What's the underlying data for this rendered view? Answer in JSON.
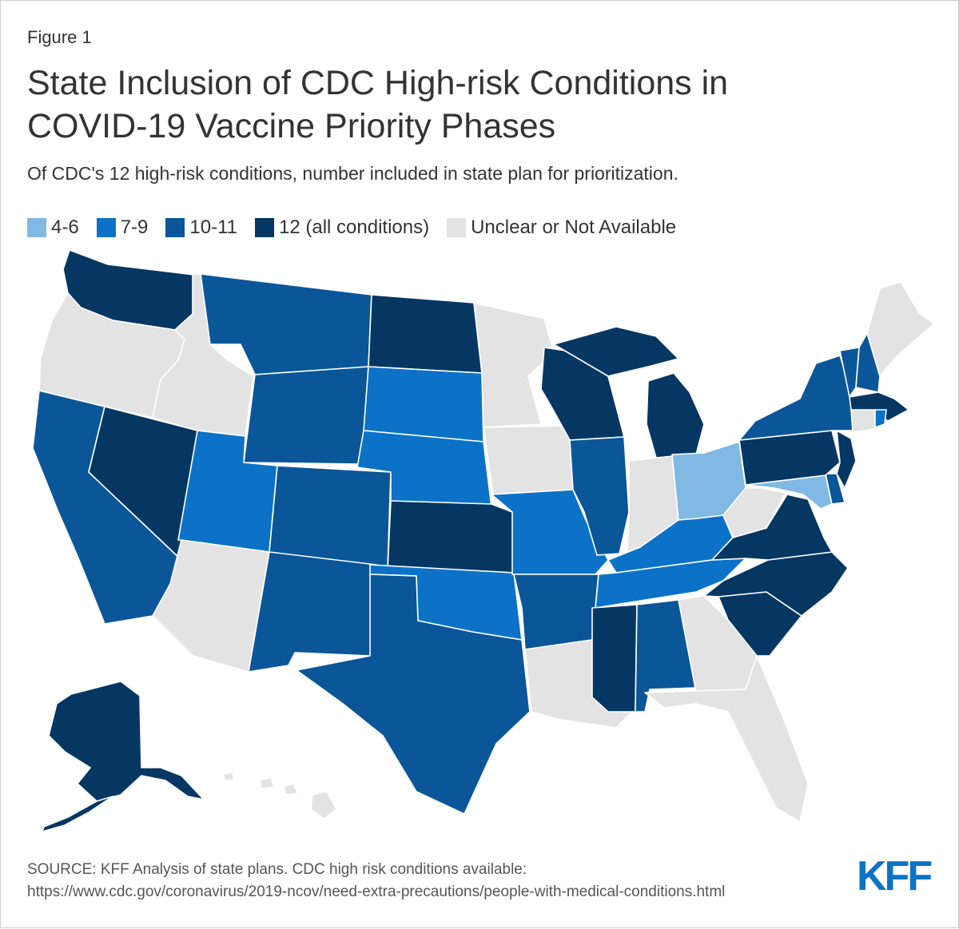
{
  "figure_label": "Figure 1",
  "title_line1": "State Inclusion of CDC High-risk Conditions in",
  "title_line2": "COVID-19 Vaccine Priority Phases",
  "subtitle": "Of CDC's 12 high-risk conditions, number included in state plan for prioritization.",
  "legend": [
    {
      "label": "4-6",
      "color": "#80b9e3"
    },
    {
      "label": "7-9",
      "color": "#0c72c8"
    },
    {
      "label": "10-11",
      "color": "#0b5699"
    },
    {
      "label": "12 (all conditions)",
      "color": "#063763"
    },
    {
      "label": "Unclear or Not Available",
      "color": "#e3e3e3"
    }
  ],
  "states": {
    "WA": "12",
    "OR": "na",
    "CA": "10-11",
    "NV": "12",
    "ID": "na",
    "MT": "10-11",
    "WY": "10-11",
    "UT": "7-9",
    "AZ": "na",
    "CO": "10-11",
    "NM": "10-11",
    "ND": "12",
    "SD": "7-9",
    "NE": "7-9",
    "KS": "12",
    "OK": "7-9",
    "TX": "10-11",
    "MN": "na",
    "IA": "na",
    "MO": "7-9",
    "AR": "10-11",
    "LA": "na",
    "WI": "12",
    "IL": "10-11",
    "MI": "12",
    "IN": "na",
    "OH": "4-6",
    "KY": "7-9",
    "TN": "7-9",
    "MS": "12",
    "AL": "10-11",
    "GA": "na",
    "FL": "na",
    "SC": "12",
    "NC": "12",
    "VA": "12",
    "WV": "na",
    "MD": "4-6",
    "DE": "10-11",
    "NJ": "12",
    "PA": "12",
    "NY": "10-11",
    "VT": "10-11",
    "NH": "10-11",
    "ME": "na",
    "MA": "12",
    "CT": "na",
    "RI": "7-9",
    "AK": "12",
    "HI": "na"
  },
  "source_line1": "SOURCE: KFF Analysis of state plans. CDC high risk conditions available:",
  "source_line2": "https://www.cdc.gov/coronavirus/2019-ncov/need-extra-precautions/people-with-medical-conditions.html",
  "logo_text": "KFF"
}
